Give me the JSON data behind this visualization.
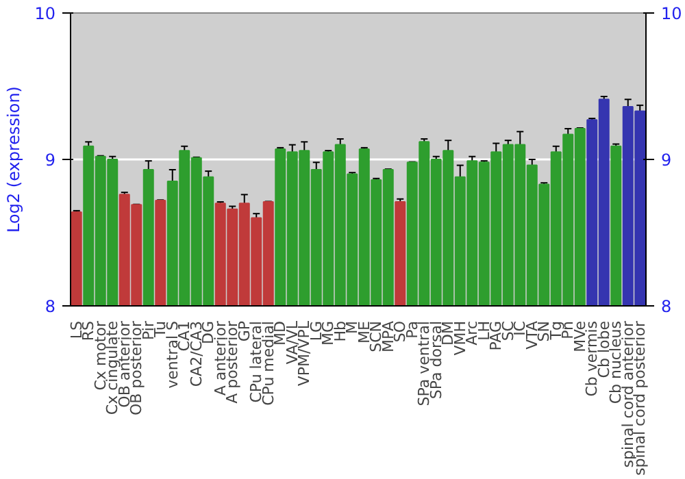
{
  "chart_data": {
    "type": "bar",
    "ylabel": "Log2 (expression)",
    "categories": [
      "LS",
      "RS",
      "Cx motor",
      "Cx cingulate",
      "OB anterior",
      "OB posterior",
      "Pir",
      "Tu",
      "ventral S",
      "CA1",
      "CA2/CA3",
      "DG",
      "A anterior",
      "A posterior",
      "GP",
      "CPu lateral",
      "CPu medial",
      "MD",
      "VA/VL",
      "VPM/VPL",
      "LG",
      "MG",
      "Hb",
      "M",
      "ME",
      "SCN",
      "MPA",
      "SO",
      "Pa",
      "SPa ventral",
      "SPa dorsal",
      "DM",
      "VMH",
      "Arc",
      "LH",
      "PAG",
      "SC",
      "IC",
      "VTA",
      "SN",
      "Tg",
      "Pn",
      "MVe",
      "Cb vermis",
      "Cb lobe",
      "Cb nucleus",
      "spinal cord anterior",
      "spinal cord posterior"
    ],
    "values": [
      8.64,
      9.09,
      9.02,
      9.0,
      8.76,
      8.69,
      8.93,
      8.72,
      8.85,
      9.06,
      9.01,
      8.88,
      8.7,
      8.66,
      8.7,
      8.6,
      8.71,
      9.07,
      9.05,
      9.06,
      8.93,
      9.05,
      9.1,
      8.9,
      9.07,
      8.86,
      8.93,
      8.71,
      8.98,
      9.12,
      9.0,
      9.06,
      8.88,
      8.99,
      8.98,
      9.05,
      9.1,
      9.1,
      8.96,
      8.83,
      9.05,
      9.17,
      9.21,
      9.27,
      9.41,
      9.09,
      9.36,
      9.33
    ],
    "errors": [
      0.01,
      0.03,
      0.005,
      0.02,
      0.015,
      0.003,
      0.06,
      0.003,
      0.08,
      0.03,
      0.005,
      0.04,
      0.01,
      0.02,
      0.06,
      0.03,
      0.003,
      0.01,
      0.05,
      0.06,
      0.05,
      0.01,
      0.04,
      0.01,
      0.01,
      0.01,
      0.004,
      0.02,
      0.003,
      0.02,
      0.02,
      0.07,
      0.08,
      0.03,
      0.01,
      0.06,
      0.03,
      0.09,
      0.04,
      0.01,
      0.04,
      0.04,
      0.005,
      0.01,
      0.02,
      0.015,
      0.05,
      0.04
    ],
    "colors": [
      "#c03a3a",
      "#2e9e2e",
      "#2e9e2e",
      "#2e9e2e",
      "#c03a3a",
      "#c03a3a",
      "#2e9e2e",
      "#c03a3a",
      "#2e9e2e",
      "#2e9e2e",
      "#2e9e2e",
      "#2e9e2e",
      "#c03a3a",
      "#c03a3a",
      "#c03a3a",
      "#c03a3a",
      "#c03a3a",
      "#2e9e2e",
      "#2e9e2e",
      "#2e9e2e",
      "#2e9e2e",
      "#2e9e2e",
      "#2e9e2e",
      "#2e9e2e",
      "#2e9e2e",
      "#2e9e2e",
      "#2e9e2e",
      "#c03a3a",
      "#2e9e2e",
      "#2e9e2e",
      "#2e9e2e",
      "#2e9e2e",
      "#2e9e2e",
      "#2e9e2e",
      "#2e9e2e",
      "#2e9e2e",
      "#2e9e2e",
      "#2e9e2e",
      "#2e9e2e",
      "#2e9e2e",
      "#2e9e2e",
      "#2e9e2e",
      "#2e9e2e",
      "#3535b0",
      "#3535b0",
      "#2e9e2e",
      "#3535b0",
      "#3535b0"
    ],
    "ylim": [
      8,
      10
    ],
    "yticks": [
      8,
      9,
      10
    ],
    "y2lim": [
      8,
      10
    ],
    "y2ticks": [
      8,
      9,
      10
    ],
    "grid": "y"
  }
}
